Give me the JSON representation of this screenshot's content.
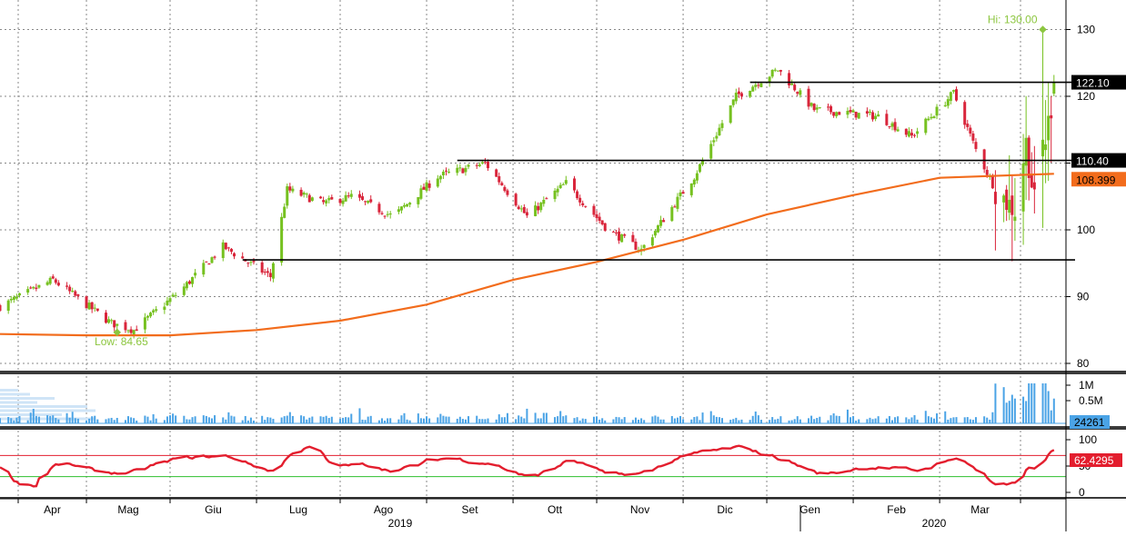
{
  "chart_data": [
    {
      "type": "candlestick",
      "panel": "price",
      "y_range": [
        78,
        135
      ],
      "y_ticks": [
        80,
        90,
        100,
        110,
        120,
        130
      ],
      "grid": true,
      "levels": [
        {
          "label": "122.10",
          "value": 122.1,
          "from": "2019-11-25",
          "to": "2020-03-16"
        },
        {
          "label": "110.40",
          "value": 110.4,
          "from": "2019-08-12",
          "to": "2020-03-16"
        },
        {
          "label": "",
          "value": 95.5,
          "from": "2019-05-27",
          "to": "2020-03-16"
        }
      ],
      "moving_average": {
        "label": "108.399",
        "points": [
          [
            "2019-03-01",
            84.4
          ],
          [
            "2019-04-01",
            84.2
          ],
          [
            "2019-05-01",
            84.2
          ],
          [
            "2019-06-01",
            85.0
          ],
          [
            "2019-07-01",
            86.4
          ],
          [
            "2019-08-01",
            88.8
          ],
          [
            "2019-09-01",
            92.5
          ],
          [
            "2019-10-01",
            95.2
          ],
          [
            "2019-11-01",
            98.5
          ],
          [
            "2019-12-01",
            102.3
          ],
          [
            "2020-01-01",
            105.2
          ],
          [
            "2020-02-01",
            107.8
          ],
          [
            "2020-03-13",
            108.4
          ]
        ]
      },
      "annotations": [
        {
          "text": "Hi: 130.00",
          "date": "2020-03-09",
          "value": 130.0
        },
        {
          "text": "Low: 84.65",
          "date": "2019-04-12",
          "value": 84.65
        }
      ],
      "anchor_path": [
        [
          "2019-03-01",
          88.5
        ],
        [
          "2019-03-20",
          92.5
        ],
        [
          "2019-04-10",
          86.0
        ],
        [
          "2019-04-18",
          85.0
        ],
        [
          "2019-05-05",
          91.0
        ],
        [
          "2019-05-20",
          97.5
        ],
        [
          "2019-06-06",
          93.0
        ],
        [
          "2019-06-12",
          106.0
        ],
        [
          "2019-06-25",
          104.0
        ],
        [
          "2019-07-05",
          105.0
        ],
        [
          "2019-07-20",
          102.0
        ],
        [
          "2019-08-05",
          108.0
        ],
        [
          "2019-08-22",
          110.0
        ],
        [
          "2019-09-06",
          102.0
        ],
        [
          "2019-09-20",
          107.0
        ],
        [
          "2019-10-05",
          100.0
        ],
        [
          "2019-10-17",
          97.0
        ],
        [
          "2019-11-05",
          108.0
        ],
        [
          "2019-11-20",
          120.0
        ],
        [
          "2019-12-05",
          124.0
        ],
        [
          "2019-12-18",
          118.0
        ],
        [
          "2020-01-10",
          117.0
        ],
        [
          "2020-01-22",
          114.0
        ],
        [
          "2020-02-06",
          120.5
        ],
        [
          "2020-02-14",
          112.0
        ],
        [
          "2020-02-21",
          106.0
        ],
        [
          "2020-02-28",
          103.0
        ],
        [
          "2020-03-03",
          113.0
        ],
        [
          "2020-03-06",
          104.0
        ],
        [
          "2020-03-11",
          116.0
        ],
        [
          "2020-03-13",
          121.0
        ]
      ]
    },
    {
      "type": "bar",
      "panel": "volume",
      "y_ticks": [
        "0.5M",
        "1M"
      ],
      "last_label": "24261"
    },
    {
      "type": "line",
      "panel": "oscillator",
      "y_range": [
        0,
        100
      ],
      "y_ticks": [
        0,
        50,
        100
      ],
      "reference_levels": [
        70,
        30
      ],
      "last_label": "62.4295"
    }
  ],
  "x_axis": {
    "months": [
      "Apr",
      "Mag",
      "Giu",
      "Lug",
      "Ago",
      "Set",
      "Ott",
      "Nov",
      "Dic",
      "Gen",
      "Feb",
      "Mar"
    ],
    "years": [
      "2019",
      "2020"
    ]
  },
  "colors": {
    "up": "#76c120",
    "down": "#d9253b",
    "moving_average": "#f26c1c",
    "volume": "#4aa3e6",
    "oscillator": "#e31e2e",
    "annotation": "#8cc63f"
  }
}
